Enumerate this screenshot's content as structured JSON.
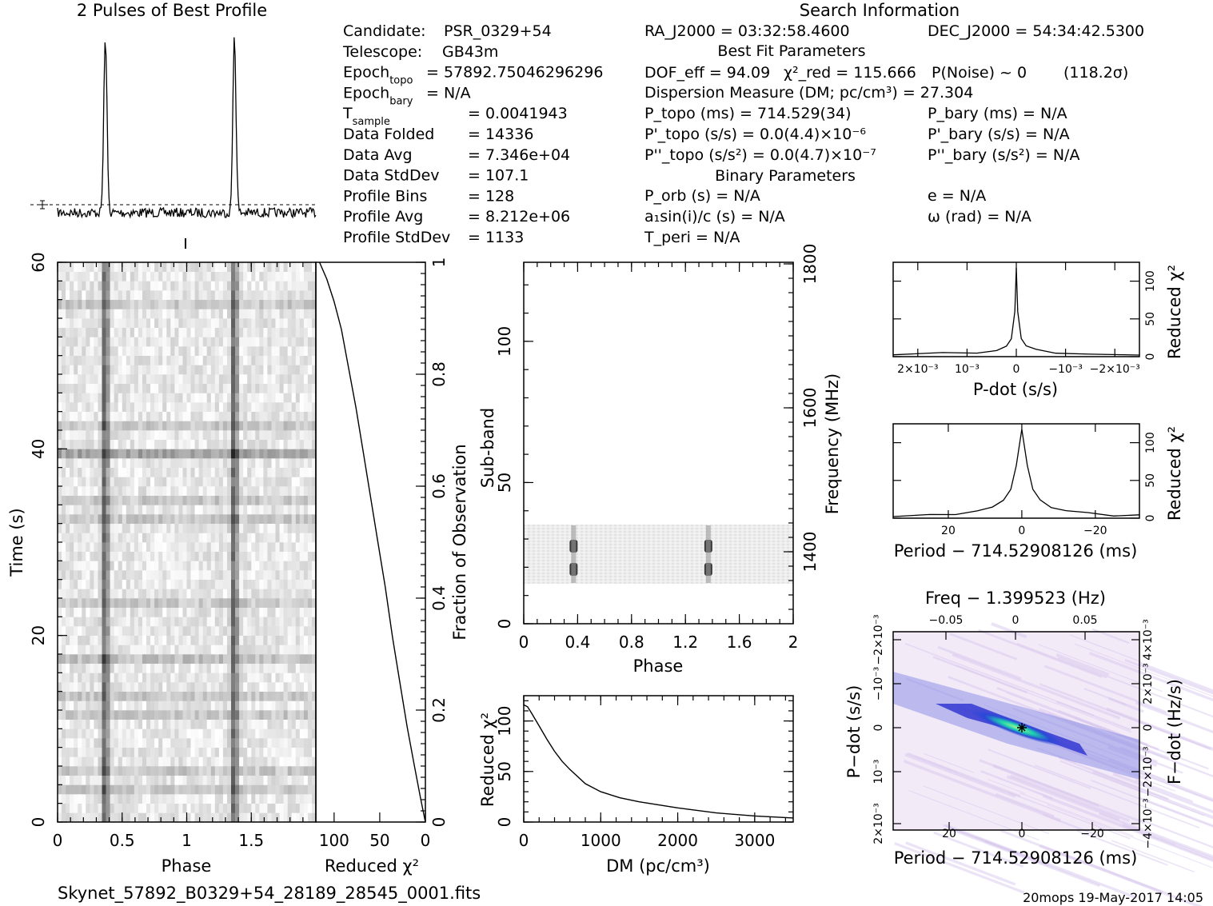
{
  "header": {
    "profile_title": "2 Pulses of Best Profile",
    "search_title": "Search Information",
    "best_fit_title": "Best Fit Parameters",
    "binary_title": "Binary Parameters"
  },
  "candidate_info": [
    {
      "label": "Candidate:",
      "value": "PSR_0329+54"
    },
    {
      "label": "Telescope:",
      "value": "GB43m"
    },
    {
      "label": "Epoch_topo",
      "value": "= 57892.75046296296"
    },
    {
      "label": "Epoch_bary",
      "value": "= N/A"
    },
    {
      "label": "T_sample",
      "value": "=   0.0041943"
    },
    {
      "label": "Data Folded",
      "value": "=   14336"
    },
    {
      "label": "Data Avg",
      "value": "=   7.346e+04"
    },
    {
      "label": "Data StdDev",
      "value": "=   107.1"
    },
    {
      "label": "Profile Bins",
      "value": "=   128"
    },
    {
      "label": "Profile Avg",
      "value": "=   8.212e+06"
    },
    {
      "label": "Profile StdDev",
      "value": "=   1133"
    }
  ],
  "search_info": {
    "ra": "RA_J2000 = 03:32:58.4600",
    "dec": "DEC_J2000 = 54:34:42.5300",
    "dof": "DOF_eff = 94.09",
    "chi2": "χ²_red = 115.666",
    "pnoise": "P(Noise) ~ 0",
    "sigma": "(118.2σ)",
    "dm": "Dispersion Measure (DM; pc/cm³) = 27.304",
    "ptopo": "P_topo (ms) =  714.529(34)",
    "pdtopo": "P'_topo (s/s) = 0.0(4.4)×10⁻⁶",
    "pddtopo": "P''_topo (s/s²) = 0.0(4.7)×10⁻⁷",
    "pbary": "P_bary (ms) = N/A",
    "pdbary": "P'_bary (s/s) = N/A",
    "pddbary": "P''_bary (s/s²) = N/A",
    "porb": "P_orb (s) = N/A",
    "asini": "a₁sin(i)/c (s) = N/A",
    "tperi": "T_peri = N/A",
    "ecc": "e = N/A",
    "omega": "ω (rad) = N/A"
  },
  "footer": {
    "filename": "Skynet_57892_B0329+54_28189_28545_0001.fits",
    "stamp": "20mops 19-May-2017 14:05"
  },
  "colors": {
    "ink": "#000000",
    "ppdot_low": "#f7eefa",
    "ppdot_mid": "#3b3bd6",
    "ppdot_high": "#22d7a0"
  },
  "chart_data": [
    {
      "id": "profile",
      "type": "line",
      "title": "2 Pulses of Best Profile",
      "x": "phase 0-2",
      "peaks_at_phase": [
        0.37,
        1.37
      ],
      "baseline_marker": "dashed"
    },
    {
      "id": "time_phase",
      "type": "heatmap",
      "xlabel": "Phase",
      "ylabel": "Time (s)",
      "xlim": [
        0,
        2
      ],
      "ylim": [
        0,
        60
      ],
      "xticks": [
        "0",
        "0.5",
        "1",
        "1.5"
      ],
      "yticks": [
        "0",
        "20",
        "40",
        "60"
      ],
      "pulse_phase": [
        0.37,
        1.37
      ]
    },
    {
      "id": "chi2_time",
      "type": "line",
      "xlabel": "Reduced χ²",
      "ylabel": "Fraction of Observation",
      "xticks": [
        "100",
        "50",
        "0"
      ],
      "yticks": [
        "0",
        "0.2",
        "0.4",
        "0.6",
        "0.8",
        "1"
      ],
      "x": [
        0,
        5,
        12,
        20,
        28,
        36,
        44,
        52,
        60,
        68,
        76,
        84,
        92,
        100,
        108,
        116
      ],
      "y": [
        0,
        0.04,
        0.1,
        0.17,
        0.25,
        0.33,
        0.42,
        0.5,
        0.58,
        0.66,
        0.74,
        0.81,
        0.88,
        0.93,
        0.97,
        1.0
      ]
    },
    {
      "id": "subband_phase",
      "type": "heatmap",
      "xlabel": "Phase",
      "ylabel": "Sub-band",
      "ylabel_right": "Frequency (MHz)",
      "xlim": [
        0,
        2
      ],
      "ylim": [
        0,
        128
      ],
      "xticks": [
        "0",
        "0.4",
        "0.8",
        "1.2",
        "1.6",
        "2"
      ],
      "yticks": [
        "0",
        "50",
        "100"
      ],
      "yticks_right": [
        "1400",
        "1600",
        "1800"
      ],
      "filled_subbands": [
        14,
        35
      ],
      "pulse_phase": [
        0.37,
        1.37
      ]
    },
    {
      "id": "dm_chi2",
      "type": "line",
      "xlabel": "DM (pc/cm³)",
      "ylabel": "Reduced χ²",
      "xlim": [
        0,
        3500
      ],
      "ylim": [
        0,
        125
      ],
      "xticks": [
        "0",
        "1000",
        "2000",
        "3000"
      ],
      "yticks": [
        "0",
        "50",
        "100"
      ],
      "x": [
        0,
        50,
        100,
        200,
        300,
        400,
        500,
        600,
        800,
        1000,
        1250,
        1500,
        2000,
        2500,
        3000,
        3500
      ],
      "y": [
        116,
        114,
        108,
        95,
        82,
        70,
        60,
        52,
        38,
        30,
        24,
        20,
        14,
        9,
        6,
        4
      ]
    },
    {
      "id": "pdot_chi2",
      "type": "line",
      "xlabel": "P-dot (s/s)",
      "ylabel": "Reduced χ²",
      "xticks": [
        "2×10⁻³",
        "10⁻³",
        "0",
        "−10⁻³",
        "−2×10⁻³"
      ],
      "yticks": [
        "0",
        "50",
        "100"
      ],
      "x": [
        0.0025,
        0.0015,
        0.0008,
        0.0004,
        0.0002,
        0.0001,
        3e-05,
        0,
        -3e-05,
        -0.0001,
        -0.0002,
        -0.0004,
        -0.0008,
        -0.0015,
        -0.0025
      ],
      "y": [
        3,
        4,
        6,
        9,
        14,
        24,
        60,
        118,
        60,
        24,
        14,
        9,
        6,
        4,
        3
      ]
    },
    {
      "id": "period_chi2",
      "type": "line",
      "xlabel": "Period − 714.52908126 (ms)",
      "ylabel": "Reduced χ²",
      "xticks": [
        "20",
        "0",
        "−20"
      ],
      "yticks": [
        "0",
        "50",
        "100"
      ],
      "x": [
        35,
        25,
        18,
        12,
        8,
        5,
        3,
        1.5,
        0,
        -1.5,
        -3,
        -5,
        -8,
        -12,
        -18,
        -25,
        -32
      ],
      "y": [
        3,
        4,
        6,
        10,
        15,
        24,
        38,
        70,
        118,
        70,
        38,
        24,
        15,
        10,
        6,
        4,
        3
      ]
    },
    {
      "id": "ppdot_plane",
      "type": "heatmap",
      "title": "Freq − 1.399523 (Hz)",
      "xlabel": "Period − 714.52908126 (ms)",
      "ylabel": "P−dot (s/s)",
      "ylabel_right": "F−dot (Hz/s)",
      "xticks_bottom": [
        "20",
        "0",
        "−20"
      ],
      "xticks_top": [
        "−0.05",
        "0",
        "0.05"
      ],
      "yticks_left": [
        "2×10⁻³",
        "10⁻³",
        "0",
        "−10⁻³",
        "−2×10⁻³"
      ],
      "yticks_right": [
        "−4×10⁻³",
        "−2×10⁻³",
        "0",
        "2×10⁻³",
        "4×10⁻³"
      ],
      "best_fit_marker": "0,0"
    }
  ]
}
